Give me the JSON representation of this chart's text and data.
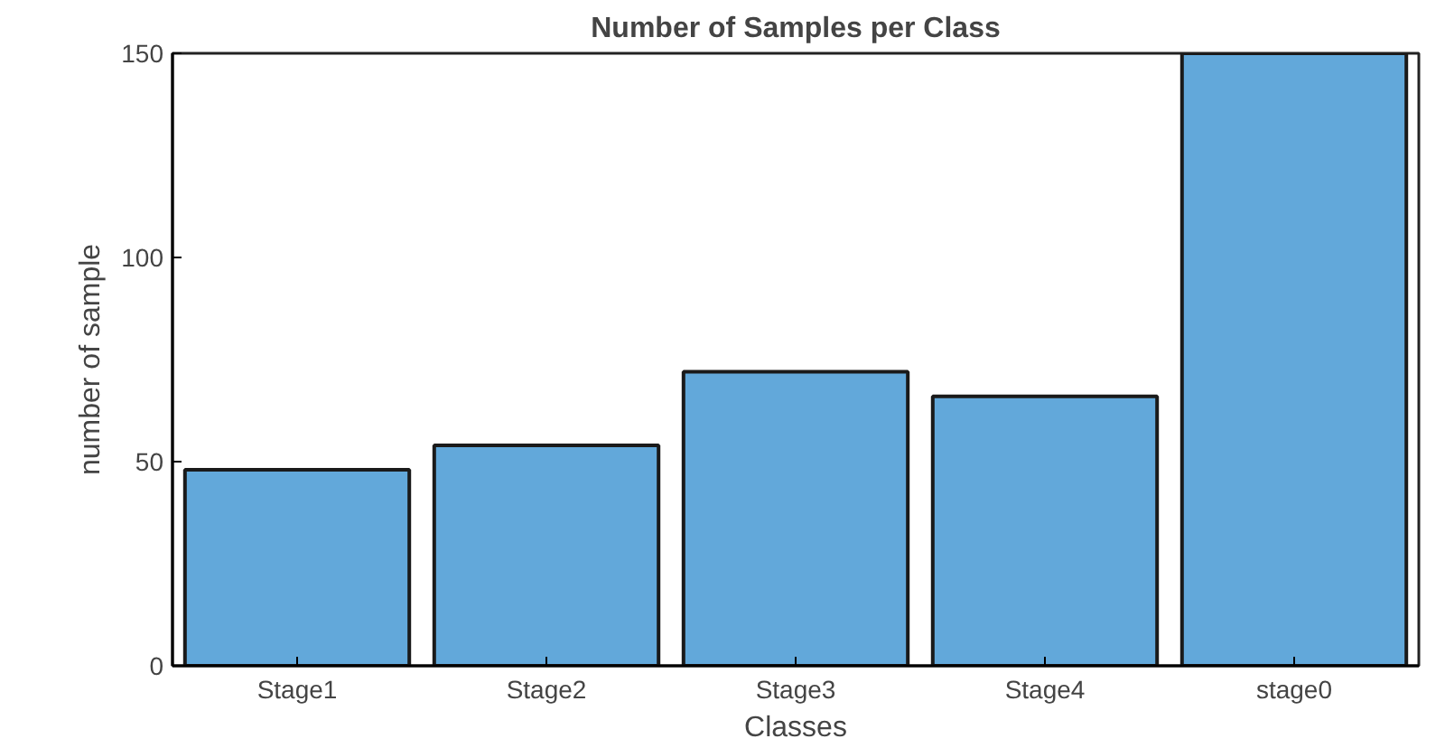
{
  "chart_data": {
    "type": "bar",
    "title": "Number of Samples per Class",
    "xlabel": "Classes",
    "ylabel": "number of sample",
    "categories": [
      "Stage1",
      "Stage2",
      "Stage3",
      "Stage4",
      "stage0"
    ],
    "values": [
      48,
      54,
      72,
      66,
      150
    ],
    "color": "#62a8da",
    "ylim": [
      0,
      150
    ],
    "yticks": [
      0,
      50,
      100,
      150
    ],
    "grid": false
  }
}
